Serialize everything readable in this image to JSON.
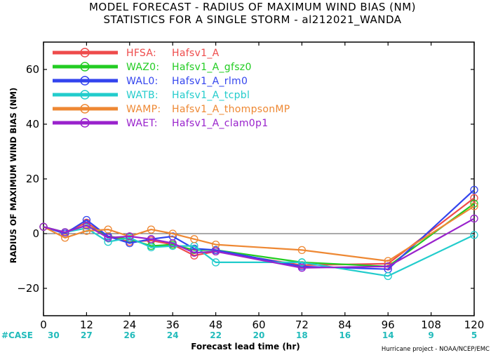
{
  "chart_data": {
    "type": "line",
    "title": "MODEL FORECAST - RADIUS OF MAXIMUM WIND BIAS (NM)",
    "subtitle": "STATISTICS FOR A SINGLE STORM - al212021_WANDA",
    "xlabel": "Forecast lead time (hr)",
    "ylabel": "RADIUS OF MAXIMUM WIND BIAS (NM)",
    "xlim": [
      0,
      120
    ],
    "ylim": [
      -30,
      70
    ],
    "x_ticks": [
      0,
      12,
      24,
      36,
      48,
      60,
      72,
      84,
      96,
      108,
      120
    ],
    "y_ticks": [
      -20,
      0,
      20,
      40,
      60
    ],
    "x_tick_labels": [
      "0",
      "12",
      "24",
      "36",
      "48",
      "60",
      "72",
      "84",
      "96",
      "108",
      "120"
    ],
    "y_tick_labels": [
      "−20",
      "0",
      "20",
      "40",
      "60"
    ],
    "zero_line": true,
    "legend_position": "top-left",
    "case_label": "#CASE",
    "cases": [
      {
        "x": 0,
        "n": "30"
      },
      {
        "x": 12,
        "n": "27"
      },
      {
        "x": 24,
        "n": "26"
      },
      {
        "x": 36,
        "n": "24"
      },
      {
        "x": 48,
        "n": "22"
      },
      {
        "x": 60,
        "n": "20"
      },
      {
        "x": 72,
        "n": "18"
      },
      {
        "x": 84,
        "n": "16"
      },
      {
        "x": 96,
        "n": "14"
      },
      {
        "x": 108,
        "n": "9"
      },
      {
        "x": 120,
        "n": "5"
      }
    ],
    "credit": "Hurricane project - NOAA/NCEP/EMC",
    "series": [
      {
        "code": "HFSA:",
        "name": "Hafsv1_A",
        "color": "#ee4b4b",
        "points": [
          [
            0,
            2.5
          ],
          [
            6,
            0.5
          ],
          [
            12,
            4
          ],
          [
            18,
            -1
          ],
          [
            24,
            -3
          ],
          [
            30,
            -2.5
          ],
          [
            36,
            -4
          ],
          [
            42,
            -8
          ],
          [
            48,
            -6.5
          ],
          [
            72,
            -11.5
          ],
          [
            96,
            -11
          ],
          [
            120,
            13
          ]
        ]
      },
      {
        "code": "WAZ0:",
        "name": "Hafsv1_A_gfsz0",
        "color": "#22cc22",
        "points": [
          [
            0,
            2.5
          ],
          [
            6,
            0.5
          ],
          [
            12,
            3
          ],
          [
            18,
            -1
          ],
          [
            24,
            -2
          ],
          [
            30,
            -4.5
          ],
          [
            36,
            -4
          ],
          [
            42,
            -6
          ],
          [
            48,
            -6
          ],
          [
            72,
            -10.5
          ],
          [
            96,
            -12
          ],
          [
            120,
            11
          ]
        ]
      },
      {
        "code": "WAL0:",
        "name": "Hafsv1_A_rlm0",
        "color": "#3344ee",
        "points": [
          [
            0,
            2.5
          ],
          [
            6,
            0
          ],
          [
            12,
            5
          ],
          [
            18,
            -1
          ],
          [
            24,
            -3.5
          ],
          [
            30,
            -2
          ],
          [
            36,
            -1
          ],
          [
            42,
            -5.5
          ],
          [
            48,
            -6
          ],
          [
            72,
            -12
          ],
          [
            96,
            -13
          ],
          [
            120,
            16
          ]
        ]
      },
      {
        "code": "WATB:",
        "name": "Hafsv1_A_tcpbl",
        "color": "#22cccc",
        "points": [
          [
            0,
            2.5
          ],
          [
            6,
            0.5
          ],
          [
            12,
            2
          ],
          [
            18,
            -3
          ],
          [
            24,
            -1.5
          ],
          [
            30,
            -5
          ],
          [
            36,
            -4.5
          ],
          [
            42,
            -4.5
          ],
          [
            48,
            -10.5
          ],
          [
            72,
            -10.5
          ],
          [
            96,
            -15.5
          ],
          [
            120,
            -0.5
          ]
        ]
      },
      {
        "code": "WAMP:",
        "name": "Hafsv1_A_thompsonMP",
        "color": "#ee8833",
        "points": [
          [
            0,
            2.5
          ],
          [
            6,
            -1.5
          ],
          [
            12,
            1
          ],
          [
            18,
            1.5
          ],
          [
            24,
            -1
          ],
          [
            30,
            1.5
          ],
          [
            36,
            0
          ],
          [
            42,
            -2
          ],
          [
            48,
            -4
          ],
          [
            72,
            -6
          ],
          [
            96,
            -10
          ],
          [
            120,
            10
          ]
        ]
      },
      {
        "code": "WAET:",
        "name": "Hafsv1_A_clam0p1",
        "color": "#9922cc",
        "points": [
          [
            0,
            2.5
          ],
          [
            6,
            0.5
          ],
          [
            12,
            3
          ],
          [
            18,
            -1.5
          ],
          [
            24,
            -1
          ],
          [
            30,
            -2
          ],
          [
            36,
            -3.5
          ],
          [
            42,
            -7
          ],
          [
            48,
            -6.5
          ],
          [
            72,
            -12.5
          ],
          [
            96,
            -12
          ],
          [
            120,
            5.5
          ]
        ]
      }
    ]
  }
}
